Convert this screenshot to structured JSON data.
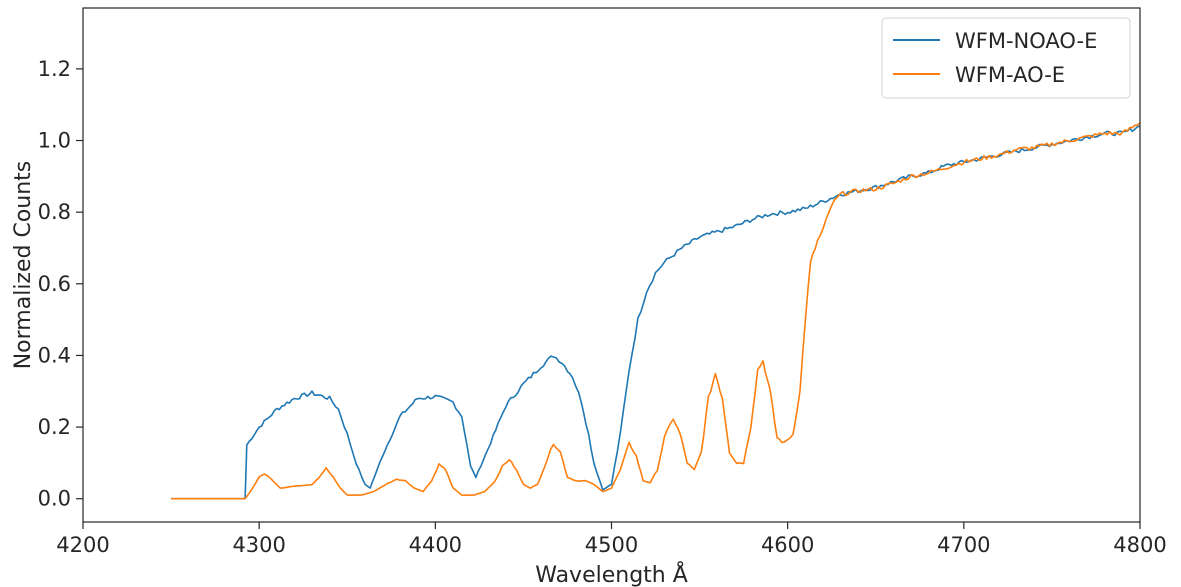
{
  "chart_data": {
    "type": "line",
    "title": "",
    "xlabel": "Wavelength Å",
    "ylabel": "Normalized Counts",
    "xlim": [
      4200,
      4800
    ],
    "ylim": [
      -0.065,
      1.37
    ],
    "xticks": [
      4200,
      4300,
      4400,
      4500,
      4600,
      4700,
      4800
    ],
    "xtick_labels": [
      "4200",
      "4300",
      "4400",
      "4500",
      "4600",
      "4700",
      "4800"
    ],
    "yticks": [
      0.0,
      0.2,
      0.4,
      0.6,
      0.8,
      1.0,
      1.2
    ],
    "ytick_labels": [
      "0.0",
      "0.2",
      "0.4",
      "0.6",
      "0.8",
      "1.0",
      "1.2"
    ],
    "grid": false,
    "legend_position": "top-right",
    "series": [
      {
        "name": "WFM-NOAO-E",
        "color": "#1f77b4",
        "points": [
          [
            4250,
            0.0
          ],
          [
            4270,
            0.0
          ],
          [
            4292,
            0.0
          ],
          [
            4293,
            0.15
          ],
          [
            4300,
            0.2
          ],
          [
            4310,
            0.25
          ],
          [
            4320,
            0.28
          ],
          [
            4330,
            0.295
          ],
          [
            4340,
            0.28
          ],
          [
            4345,
            0.25
          ],
          [
            4350,
            0.18
          ],
          [
            4355,
            0.1
          ],
          [
            4360,
            0.04
          ],
          [
            4363,
            0.03
          ],
          [
            4370,
            0.12
          ],
          [
            4380,
            0.23
          ],
          [
            4390,
            0.28
          ],
          [
            4400,
            0.285
          ],
          [
            4410,
            0.27
          ],
          [
            4415,
            0.23
          ],
          [
            4418,
            0.15
          ],
          [
            4420,
            0.09
          ],
          [
            4423,
            0.06
          ],
          [
            4430,
            0.14
          ],
          [
            4440,
            0.26
          ],
          [
            4450,
            0.32
          ],
          [
            4460,
            0.37
          ],
          [
            4467,
            0.4
          ],
          [
            4472,
            0.38
          ],
          [
            4478,
            0.34
          ],
          [
            4483,
            0.27
          ],
          [
            4487,
            0.18
          ],
          [
            4490,
            0.1
          ],
          [
            4495,
            0.025
          ],
          [
            4500,
            0.04
          ],
          [
            4505,
            0.18
          ],
          [
            4510,
            0.36
          ],
          [
            4515,
            0.5
          ],
          [
            4520,
            0.58
          ],
          [
            4525,
            0.63
          ],
          [
            4530,
            0.66
          ],
          [
            4540,
            0.7
          ],
          [
            4550,
            0.73
          ],
          [
            4560,
            0.745
          ],
          [
            4570,
            0.76
          ],
          [
            4580,
            0.78
          ],
          [
            4590,
            0.795
          ],
          [
            4600,
            0.8
          ],
          [
            4610,
            0.81
          ],
          [
            4620,
            0.83
          ],
          [
            4630,
            0.85
          ],
          [
            4640,
            0.86
          ],
          [
            4650,
            0.87
          ],
          [
            4660,
            0.885
          ],
          [
            4670,
            0.9
          ],
          [
            4680,
            0.91
          ],
          [
            4690,
            0.93
          ],
          [
            4700,
            0.94
          ],
          [
            4710,
            0.95
          ],
          [
            4720,
            0.96
          ],
          [
            4730,
            0.97
          ],
          [
            4740,
            0.98
          ],
          [
            4750,
            0.99
          ],
          [
            4760,
            1.0
          ],
          [
            4770,
            1.01
          ],
          [
            4780,
            1.02
          ],
          [
            4790,
            1.02
          ],
          [
            4800,
            1.04
          ]
        ]
      },
      {
        "name": "WFM-AO-E",
        "color": "#ff7f0e",
        "points": [
          [
            4250,
            0.0
          ],
          [
            4270,
            0.0
          ],
          [
            4292,
            0.0
          ],
          [
            4295,
            0.02
          ],
          [
            4300,
            0.06
          ],
          [
            4303,
            0.07
          ],
          [
            4308,
            0.05
          ],
          [
            4312,
            0.03
          ],
          [
            4320,
            0.035
          ],
          [
            4330,
            0.04
          ],
          [
            4334,
            0.06
          ],
          [
            4338,
            0.085
          ],
          [
            4342,
            0.06
          ],
          [
            4346,
            0.03
          ],
          [
            4350,
            0.01
          ],
          [
            4358,
            0.01
          ],
          [
            4365,
            0.02
          ],
          [
            4372,
            0.04
          ],
          [
            4378,
            0.055
          ],
          [
            4383,
            0.05
          ],
          [
            4388,
            0.03
          ],
          [
            4393,
            0.02
          ],
          [
            4398,
            0.05
          ],
          [
            4402,
            0.095
          ],
          [
            4406,
            0.08
          ],
          [
            4410,
            0.03
          ],
          [
            4415,
            0.01
          ],
          [
            4422,
            0.01
          ],
          [
            4428,
            0.02
          ],
          [
            4434,
            0.05
          ],
          [
            4438,
            0.09
          ],
          [
            4442,
            0.11
          ],
          [
            4446,
            0.08
          ],
          [
            4450,
            0.04
          ],
          [
            4454,
            0.03
          ],
          [
            4458,
            0.04
          ],
          [
            4462,
            0.09
          ],
          [
            4467,
            0.155
          ],
          [
            4471,
            0.13
          ],
          [
            4475,
            0.06
          ],
          [
            4480,
            0.05
          ],
          [
            4485,
            0.05
          ],
          [
            4490,
            0.04
          ],
          [
            4495,
            0.02
          ],
          [
            4500,
            0.03
          ],
          [
            4505,
            0.08
          ],
          [
            4510,
            0.155
          ],
          [
            4514,
            0.12
          ],
          [
            4518,
            0.05
          ],
          [
            4522,
            0.045
          ],
          [
            4526,
            0.08
          ],
          [
            4530,
            0.17
          ],
          [
            4535,
            0.225
          ],
          [
            4539,
            0.18
          ],
          [
            4543,
            0.1
          ],
          [
            4547,
            0.08
          ],
          [
            4551,
            0.13
          ],
          [
            4555,
            0.28
          ],
          [
            4559,
            0.35
          ],
          [
            4563,
            0.28
          ],
          [
            4567,
            0.13
          ],
          [
            4571,
            0.1
          ],
          [
            4575,
            0.1
          ],
          [
            4579,
            0.2
          ],
          [
            4583,
            0.36
          ],
          [
            4586,
            0.385
          ],
          [
            4590,
            0.3
          ],
          [
            4594,
            0.17
          ],
          [
            4598,
            0.155
          ],
          [
            4603,
            0.18
          ],
          [
            4607,
            0.3
          ],
          [
            4610,
            0.5
          ],
          [
            4613,
            0.66
          ],
          [
            4617,
            0.72
          ],
          [
            4620,
            0.75
          ],
          [
            4625,
            0.82
          ],
          [
            4630,
            0.85
          ],
          [
            4640,
            0.86
          ],
          [
            4650,
            0.865
          ],
          [
            4660,
            0.88
          ],
          [
            4670,
            0.9
          ],
          [
            4680,
            0.91
          ],
          [
            4690,
            0.925
          ],
          [
            4700,
            0.94
          ],
          [
            4710,
            0.95
          ],
          [
            4720,
            0.96
          ],
          [
            4730,
            0.975
          ],
          [
            4740,
            0.98
          ],
          [
            4750,
            0.99
          ],
          [
            4760,
            1.0
          ],
          [
            4770,
            1.01
          ],
          [
            4780,
            1.02
          ],
          [
            4790,
            1.02
          ],
          [
            4800,
            1.05
          ]
        ]
      }
    ]
  }
}
